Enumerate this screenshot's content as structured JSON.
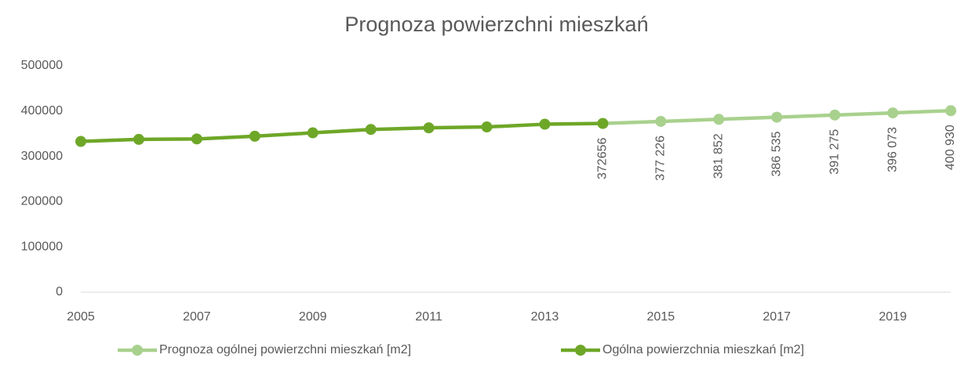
{
  "chart_data": {
    "type": "line",
    "title": "Prognoza powierzchni mieszkań",
    "x": [
      2005,
      2006,
      2007,
      2008,
      2009,
      2010,
      2011,
      2012,
      2013,
      2014,
      2015,
      2016,
      2017,
      2018,
      2019,
      2020
    ],
    "series": [
      {
        "name": "Prognoza ogólnej powierzchni mieszkań [m2]",
        "color": "#a9d18e",
        "values": [
          null,
          null,
          null,
          null,
          null,
          null,
          null,
          null,
          null,
          372656,
          377226,
          381852,
          386535,
          391275,
          396073,
          400930
        ],
        "value_labels": [
          null,
          null,
          null,
          null,
          null,
          null,
          null,
          null,
          null,
          "372656",
          "377 226",
          "381 852",
          "386 535",
          "391 275",
          "396 073",
          "400 930"
        ]
      },
      {
        "name": "Ogólna powierzchnia mieszkań [m2]",
        "color": "#6ea728",
        "values": [
          333000,
          337500,
          338500,
          344500,
          352000,
          359500,
          363000,
          365000,
          371000,
          372656,
          null,
          null,
          null,
          null,
          null,
          null
        ]
      }
    ],
    "xlim": [
      2005,
      2020
    ],
    "xticks": [
      2005,
      2007,
      2009,
      2011,
      2013,
      2015,
      2017,
      2019
    ],
    "ylim": [
      0,
      500000
    ],
    "yticks": [
      0,
      100000,
      200000,
      300000,
      400000,
      500000
    ],
    "grid": false,
    "legend": "bottom"
  }
}
